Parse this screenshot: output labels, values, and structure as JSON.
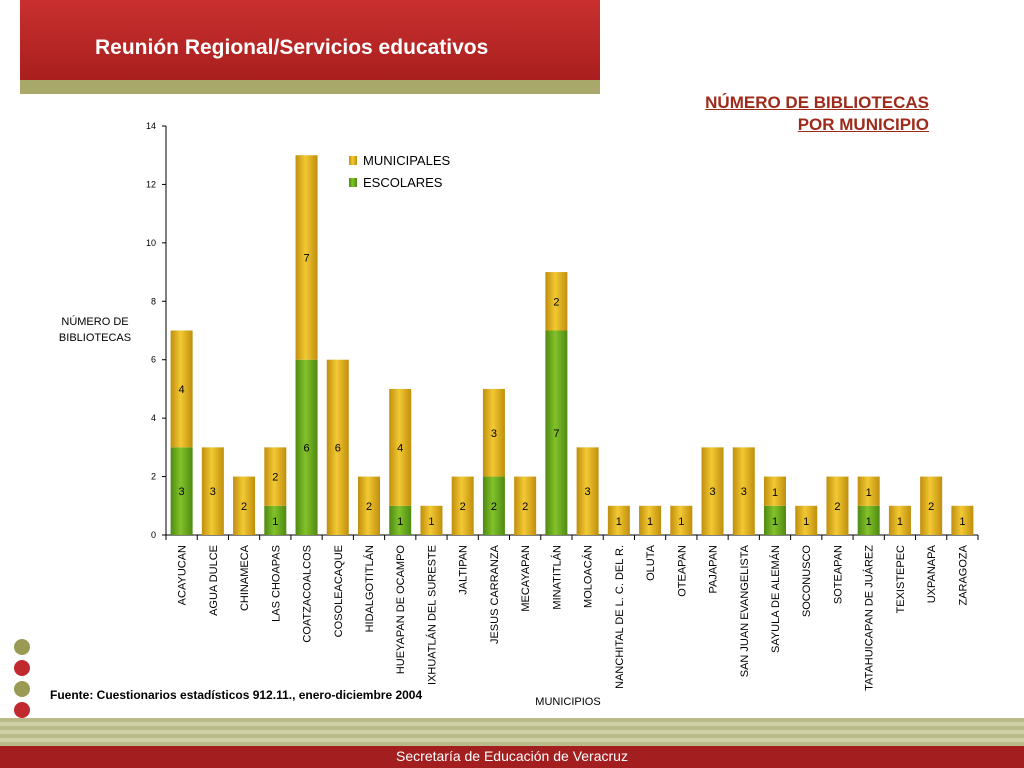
{
  "header": {
    "title": "Reunión Regional/Servicios educativos"
  },
  "slide_heading": {
    "line1": "NÚMERO DE BIBLIOTECAS",
    "line2": "POR MUNICIPIO"
  },
  "source_note": "Fuente: Cuestionarios estadísticos 912.11., enero-diciembre 2004",
  "footer": {
    "text": "Secretaría de Educación de Veracruz"
  },
  "decorations": {
    "circle_colors": [
      "#9a9a55",
      "#c0292e",
      "#9a9a55",
      "#c0292e"
    ]
  },
  "colors": {
    "escolares": "#5c9e1a",
    "municipales": "#d8a617"
  },
  "chart_data": {
    "type": "bar",
    "stacked": true,
    "ylabel": "NÚMERO DE BIBLIOTECAS",
    "xlabel": "MUNICIPIOS",
    "ylim": [
      0,
      14
    ],
    "yticks": [
      0,
      2,
      4,
      6,
      8,
      10,
      12,
      14
    ],
    "legend_position": "top-left",
    "categories": [
      "ACAYUCAN",
      "AGUA DULCE",
      "CHINAMECA",
      "LAS CHOAPAS",
      "COATZACOALCOS",
      "COSOLEACAQUE",
      "HIDALGOTITLÁN",
      "HUEYAPAN DE OCAMPO",
      "IXHUATLÁN DEL SURESTE",
      "JALTIPAN",
      "JESUS CARRANZA",
      "MECAYAPAN",
      "MINATITLÁN",
      "MOLOACÁN",
      "NANCHITAL DE L. C. DEL R.",
      "OLUTA",
      "OTEAPAN",
      "PAJAPAN",
      "SAN JUAN EVANGELISTA",
      "SAYULA DE ALEMÁN",
      "SOCONUSCO",
      "SOTEAPAN",
      "TATAHUICAPAN DE JUÁREZ",
      "TEXISTEPEC",
      "UXPANAPA",
      "ZARAGOZA"
    ],
    "series": [
      {
        "name": "ESCOLARES",
        "values": [
          3,
          0,
          0,
          1,
          6,
          0,
          0,
          1,
          0,
          0,
          2,
          0,
          7,
          0,
          0,
          0,
          0,
          0,
          0,
          1,
          0,
          0,
          1,
          0,
          0,
          0
        ]
      },
      {
        "name": "MUNICIPALES",
        "values": [
          4,
          3,
          2,
          2,
          7,
          6,
          2,
          4,
          1,
          2,
          3,
          2,
          2,
          3,
          1,
          1,
          1,
          3,
          3,
          1,
          1,
          2,
          1,
          1,
          2,
          1
        ]
      }
    ]
  }
}
